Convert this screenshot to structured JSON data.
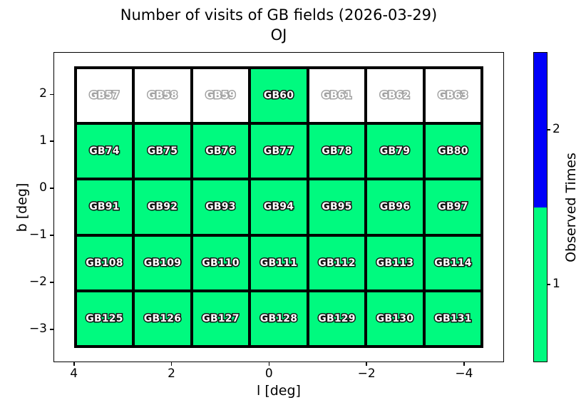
{
  "chart_data": {
    "type": "heatmap",
    "title": "Number of visits of GB fields (2026-03-29)",
    "subtitle": "OJ",
    "xlabel": "l [deg]",
    "ylabel": "b [deg]",
    "xlim": [
      4.42,
      -4.82
    ],
    "ylim": [
      -3.7,
      2.9
    ],
    "x_ticks": [
      {
        "value": 4,
        "label": "4"
      },
      {
        "value": 2,
        "label": "2"
      },
      {
        "value": 0,
        "label": "0"
      },
      {
        "value": -2,
        "label": "−2"
      },
      {
        "value": -4,
        "label": "−4"
      }
    ],
    "y_ticks": [
      {
        "value": 2,
        "label": "2"
      },
      {
        "value": 1,
        "label": "1"
      },
      {
        "value": 0,
        "label": "0"
      },
      {
        "value": -1,
        "label": "−1"
      },
      {
        "value": -2,
        "label": "−2"
      },
      {
        "value": -3,
        "label": "−3"
      }
    ],
    "grid": {
      "cols": 7,
      "rows": 5,
      "l_edges": [
        4.0,
        -4.4
      ],
      "b_edges": [
        2.6,
        -3.4
      ],
      "l_centers": [
        3.4,
        2.2,
        1.0,
        -0.2,
        -1.4,
        -2.6,
        -3.8
      ],
      "b_centers": [
        2.0,
        0.8,
        -0.4,
        -1.6,
        -2.8
      ]
    },
    "rows": [
      {
        "b_center": 2.0,
        "fields": [
          "GB57",
          "GB58",
          "GB59",
          "GB60",
          "GB61",
          "GB62",
          "GB63"
        ],
        "visits": [
          0,
          0,
          0,
          1,
          0,
          0,
          0
        ]
      },
      {
        "b_center": 0.8,
        "fields": [
          "GB74",
          "GB75",
          "GB76",
          "GB77",
          "GB78",
          "GB79",
          "GB80"
        ],
        "visits": [
          1,
          1,
          1,
          1,
          1,
          1,
          1
        ]
      },
      {
        "b_center": -0.4,
        "fields": [
          "GB91",
          "GB92",
          "GB93",
          "GB94",
          "GB95",
          "GB96",
          "GB97"
        ],
        "visits": [
          1,
          1,
          1,
          1,
          1,
          1,
          1
        ]
      },
      {
        "b_center": -1.6,
        "fields": [
          "GB108",
          "GB109",
          "GB110",
          "GB111",
          "GB112",
          "GB113",
          "GB114"
        ],
        "visits": [
          1,
          1,
          1,
          1,
          1,
          1,
          1
        ]
      },
      {
        "b_center": -2.8,
        "fields": [
          "GB125",
          "GB126",
          "GB127",
          "GB128",
          "GB129",
          "GB130",
          "GB131"
        ],
        "visits": [
          1,
          1,
          1,
          1,
          1,
          1,
          1
        ]
      }
    ],
    "colorbar": {
      "label": "Observed Times",
      "ticks": [
        {
          "value": 2,
          "label": "2"
        },
        {
          "value": 1,
          "label": "1"
        }
      ],
      "levels": [
        {
          "value": 1,
          "color": "#00FA7F"
        },
        {
          "value": 2,
          "color": "#0000FA"
        }
      ],
      "unobserved_color": "#FFFFFF",
      "range": [
        0.5,
        2.5
      ]
    }
  }
}
